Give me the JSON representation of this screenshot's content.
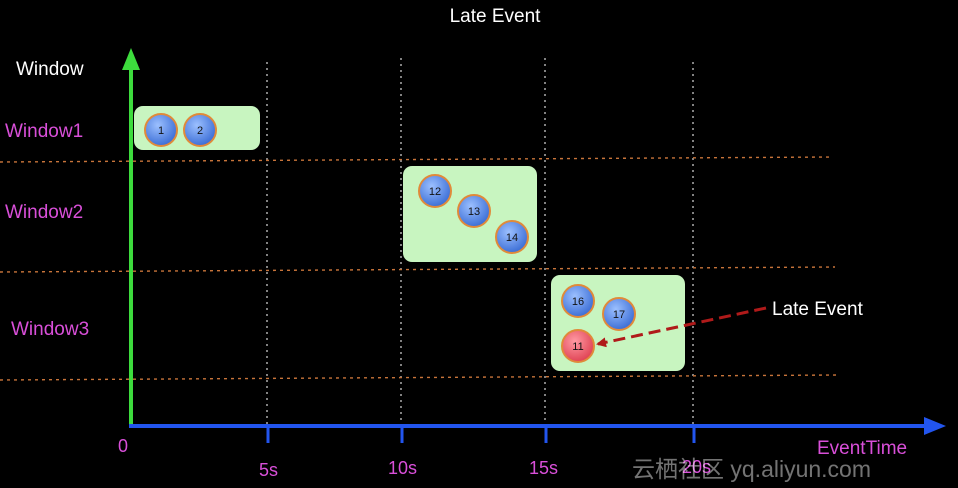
{
  "title": "Late Event",
  "y_axis_label": "Window",
  "x_axis_label": "EventTime",
  "origin_label": "0",
  "ticks": [
    "5s",
    "10s",
    "15s",
    "20s"
  ],
  "windows": [
    {
      "label": "Window1",
      "events": [
        "1",
        "2"
      ]
    },
    {
      "label": "Window2",
      "events": [
        "12",
        "13",
        "14"
      ]
    },
    {
      "label": "Window3",
      "events": [
        "16",
        "17",
        "11"
      ]
    }
  ],
  "late_event": {
    "label": "Late Event",
    "event": "11"
  },
  "watermark": "云栖社区 yq.aliyun.com",
  "colors": {
    "background": "#000000",
    "y_axis": "#3ddc3d",
    "x_axis": "#2255ee",
    "window_label": "#d94fd9",
    "axis_label": "#d94fd9",
    "window_box": "#c8f5c0",
    "event_fill": "#5b8fe6",
    "event_stroke": "#e08a3a",
    "late_fill": "#ee5a6a",
    "late_arrow": "#b01a1a",
    "grid_v": "#ffffff",
    "grid_h": "#c8743a"
  }
}
